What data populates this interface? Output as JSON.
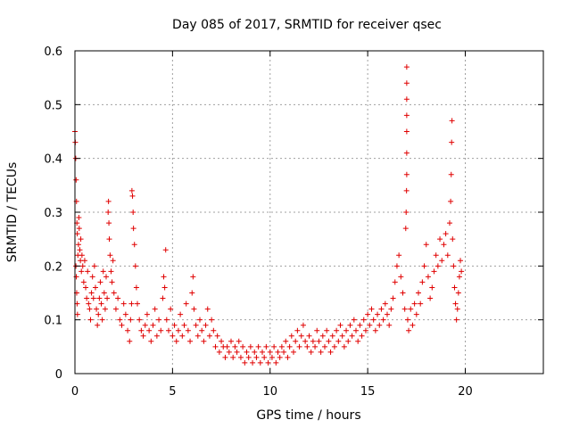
{
  "chart_data": {
    "type": "scatter",
    "title": "Day 085 of 2017, SRMTID for receiver qsec",
    "xlabel": "GPS time / hours",
    "ylabel": "SRMTID / TECUs",
    "xlim": [
      0,
      24
    ],
    "ylim": [
      0,
      0.6
    ],
    "xticks": [
      0,
      5,
      10,
      15,
      20
    ],
    "xtick_labels": [
      "0",
      "5",
      "10",
      "15",
      "20"
    ],
    "yticks": [
      0,
      0.1,
      0.2,
      0.3,
      0.4,
      0.5,
      0.6
    ],
    "ytick_labels": [
      "0",
      "0.1",
      "0.2",
      "0.3",
      "0.4",
      "0.5",
      "0.6"
    ],
    "grid": true,
    "marker": "+",
    "color": "#e00000",
    "series": [
      {
        "name": "SRMTID",
        "points": [
          [
            0.0,
            0.45
          ],
          [
            0.02,
            0.43
          ],
          [
            0.04,
            0.4
          ],
          [
            0.06,
            0.36
          ],
          [
            0.08,
            0.32
          ],
          [
            0.1,
            0.28
          ],
          [
            0.12,
            0.26
          ],
          [
            0.05,
            0.2
          ],
          [
            0.07,
            0.18
          ],
          [
            0.09,
            0.15
          ],
          [
            0.11,
            0.13
          ],
          [
            0.13,
            0.11
          ],
          [
            0.15,
            0.22
          ],
          [
            0.18,
            0.24
          ],
          [
            0.2,
            0.29
          ],
          [
            0.22,
            0.27
          ],
          [
            0.25,
            0.23
          ],
          [
            0.28,
            0.21
          ],
          [
            0.3,
            0.25
          ],
          [
            0.33,
            0.19
          ],
          [
            0.36,
            0.22
          ],
          [
            0.4,
            0.2
          ],
          [
            0.45,
            0.17
          ],
          [
            0.5,
            0.21
          ],
          [
            0.55,
            0.16
          ],
          [
            0.6,
            0.14
          ],
          [
            0.65,
            0.19
          ],
          [
            0.7,
            0.13
          ],
          [
            0.75,
            0.12
          ],
          [
            0.8,
            0.1
          ],
          [
            0.85,
            0.15
          ],
          [
            0.9,
            0.18
          ],
          [
            0.95,
            0.14
          ],
          [
            1.0,
            0.2
          ],
          [
            1.05,
            0.16
          ],
          [
            1.1,
            0.12
          ],
          [
            1.15,
            0.09
          ],
          [
            1.2,
            0.11
          ],
          [
            1.25,
            0.14
          ],
          [
            1.3,
            0.17
          ],
          [
            1.35,
            0.13
          ],
          [
            1.4,
            0.1
          ],
          [
            1.45,
            0.19
          ],
          [
            1.5,
            0.15
          ],
          [
            1.55,
            0.12
          ],
          [
            1.6,
            0.18
          ],
          [
            1.65,
            0.14
          ],
          [
            1.7,
            0.3
          ],
          [
            1.72,
            0.32
          ],
          [
            1.74,
            0.28
          ],
          [
            1.76,
            0.25
          ],
          [
            1.8,
            0.22
          ],
          [
            1.85,
            0.19
          ],
          [
            1.9,
            0.17
          ],
          [
            1.95,
            0.21
          ],
          [
            2.0,
            0.15
          ],
          [
            2.1,
            0.12
          ],
          [
            2.2,
            0.14
          ],
          [
            2.3,
            0.1
          ],
          [
            2.4,
            0.09
          ],
          [
            2.5,
            0.13
          ],
          [
            2.6,
            0.11
          ],
          [
            2.7,
            0.08
          ],
          [
            2.8,
            0.06
          ],
          [
            2.85,
            0.1
          ],
          [
            2.9,
            0.13
          ],
          [
            2.92,
            0.34
          ],
          [
            2.95,
            0.33
          ],
          [
            2.98,
            0.3
          ],
          [
            3.0,
            0.27
          ],
          [
            3.05,
            0.24
          ],
          [
            3.1,
            0.2
          ],
          [
            3.15,
            0.16
          ],
          [
            3.2,
            0.13
          ],
          [
            3.3,
            0.1
          ],
          [
            3.4,
            0.08
          ],
          [
            3.5,
            0.07
          ],
          [
            3.6,
            0.09
          ],
          [
            3.7,
            0.11
          ],
          [
            3.8,
            0.08
          ],
          [
            3.9,
            0.06
          ],
          [
            4.0,
            0.09
          ],
          [
            4.1,
            0.12
          ],
          [
            4.2,
            0.07
          ],
          [
            4.3,
            0.1
          ],
          [
            4.4,
            0.08
          ],
          [
            4.5,
            0.14
          ],
          [
            4.55,
            0.18
          ],
          [
            4.6,
            0.16
          ],
          [
            4.65,
            0.23
          ],
          [
            4.7,
            0.1
          ],
          [
            4.8,
            0.08
          ],
          [
            4.9,
            0.12
          ],
          [
            5.0,
            0.07
          ],
          [
            5.1,
            0.09
          ],
          [
            5.2,
            0.06
          ],
          [
            5.3,
            0.08
          ],
          [
            5.4,
            0.11
          ],
          [
            5.5,
            0.07
          ],
          [
            5.6,
            0.09
          ],
          [
            5.7,
            0.13
          ],
          [
            5.8,
            0.08
          ],
          [
            5.9,
            0.06
          ],
          [
            6.0,
            0.15
          ],
          [
            6.05,
            0.18
          ],
          [
            6.1,
            0.12
          ],
          [
            6.2,
            0.09
          ],
          [
            6.3,
            0.07
          ],
          [
            6.4,
            0.1
          ],
          [
            6.5,
            0.08
          ],
          [
            6.6,
            0.06
          ],
          [
            6.7,
            0.09
          ],
          [
            6.8,
            0.12
          ],
          [
            6.9,
            0.07
          ],
          [
            7.0,
            0.1
          ],
          [
            7.1,
            0.08
          ],
          [
            7.2,
            0.05
          ],
          [
            7.3,
            0.07
          ],
          [
            7.4,
            0.04
          ],
          [
            7.5,
            0.06
          ],
          [
            7.6,
            0.05
          ],
          [
            7.7,
            0.03
          ],
          [
            7.8,
            0.05
          ],
          [
            7.9,
            0.04
          ],
          [
            8.0,
            0.06
          ],
          [
            8.1,
            0.03
          ],
          [
            8.2,
            0.05
          ],
          [
            8.3,
            0.04
          ],
          [
            8.4,
            0.06
          ],
          [
            8.5,
            0.03
          ],
          [
            8.6,
            0.05
          ],
          [
            8.7,
            0.02
          ],
          [
            8.8,
            0.04
          ],
          [
            8.9,
            0.03
          ],
          [
            9.0,
            0.05
          ],
          [
            9.1,
            0.02
          ],
          [
            9.2,
            0.04
          ],
          [
            9.3,
            0.03
          ],
          [
            9.4,
            0.05
          ],
          [
            9.5,
            0.02
          ],
          [
            9.6,
            0.04
          ],
          [
            9.7,
            0.03
          ],
          [
            9.8,
            0.05
          ],
          [
            9.9,
            0.02
          ],
          [
            10.0,
            0.04
          ],
          [
            10.1,
            0.03
          ],
          [
            10.2,
            0.05
          ],
          [
            10.3,
            0.02
          ],
          [
            10.4,
            0.04
          ],
          [
            10.5,
            0.03
          ],
          [
            10.6,
            0.05
          ],
          [
            10.7,
            0.04
          ],
          [
            10.8,
            0.06
          ],
          [
            10.9,
            0.03
          ],
          [
            11.0,
            0.05
          ],
          [
            11.1,
            0.07
          ],
          [
            11.2,
            0.04
          ],
          [
            11.3,
            0.06
          ],
          [
            11.4,
            0.08
          ],
          [
            11.5,
            0.05
          ],
          [
            11.6,
            0.07
          ],
          [
            11.7,
            0.09
          ],
          [
            11.8,
            0.06
          ],
          [
            11.9,
            0.05
          ],
          [
            12.0,
            0.07
          ],
          [
            12.1,
            0.04
          ],
          [
            12.2,
            0.06
          ],
          [
            12.3,
            0.05
          ],
          [
            12.4,
            0.08
          ],
          [
            12.5,
            0.06
          ],
          [
            12.6,
            0.04
          ],
          [
            12.7,
            0.07
          ],
          [
            12.8,
            0.05
          ],
          [
            12.9,
            0.08
          ],
          [
            13.0,
            0.06
          ],
          [
            13.1,
            0.04
          ],
          [
            13.2,
            0.07
          ],
          [
            13.3,
            0.05
          ],
          [
            13.4,
            0.08
          ],
          [
            13.5,
            0.06
          ],
          [
            13.6,
            0.09
          ],
          [
            13.7,
            0.07
          ],
          [
            13.8,
            0.05
          ],
          [
            13.9,
            0.08
          ],
          [
            14.0,
            0.06
          ],
          [
            14.1,
            0.09
          ],
          [
            14.2,
            0.07
          ],
          [
            14.3,
            0.1
          ],
          [
            14.4,
            0.08
          ],
          [
            14.5,
            0.06
          ],
          [
            14.6,
            0.09
          ],
          [
            14.7,
            0.07
          ],
          [
            14.8,
            0.1
          ],
          [
            14.9,
            0.08
          ],
          [
            15.0,
            0.11
          ],
          [
            15.1,
            0.09
          ],
          [
            15.2,
            0.12
          ],
          [
            15.3,
            0.1
          ],
          [
            15.4,
            0.08
          ],
          [
            15.5,
            0.11
          ],
          [
            15.6,
            0.09
          ],
          [
            15.7,
            0.12
          ],
          [
            15.8,
            0.1
          ],
          [
            15.9,
            0.13
          ],
          [
            16.0,
            0.11
          ],
          [
            16.1,
            0.09
          ],
          [
            16.2,
            0.12
          ],
          [
            16.3,
            0.14
          ],
          [
            16.4,
            0.17
          ],
          [
            16.5,
            0.2
          ],
          [
            16.6,
            0.22
          ],
          [
            16.7,
            0.18
          ],
          [
            16.8,
            0.15
          ],
          [
            16.9,
            0.12
          ],
          [
            16.95,
            0.27
          ],
          [
            16.97,
            0.3
          ],
          [
            16.99,
            0.34
          ],
          [
            17.0,
            0.57
          ],
          [
            17.0,
            0.54
          ],
          [
            17.0,
            0.51
          ],
          [
            17.0,
            0.48
          ],
          [
            17.0,
            0.45
          ],
          [
            17.0,
            0.41
          ],
          [
            17.0,
            0.37
          ],
          [
            17.05,
            0.1
          ],
          [
            17.1,
            0.08
          ],
          [
            17.2,
            0.12
          ],
          [
            17.3,
            0.09
          ],
          [
            17.4,
            0.13
          ],
          [
            17.5,
            0.11
          ],
          [
            17.6,
            0.15
          ],
          [
            17.7,
            0.13
          ],
          [
            17.8,
            0.17
          ],
          [
            17.9,
            0.2
          ],
          [
            18.0,
            0.24
          ],
          [
            18.1,
            0.18
          ],
          [
            18.2,
            0.14
          ],
          [
            18.3,
            0.16
          ],
          [
            18.4,
            0.19
          ],
          [
            18.5,
            0.22
          ],
          [
            18.6,
            0.2
          ],
          [
            18.7,
            0.25
          ],
          [
            18.8,
            0.21
          ],
          [
            18.9,
            0.24
          ],
          [
            19.0,
            0.26
          ],
          [
            19.1,
            0.22
          ],
          [
            19.2,
            0.28
          ],
          [
            19.25,
            0.32
          ],
          [
            19.28,
            0.37
          ],
          [
            19.3,
            0.43
          ],
          [
            19.32,
            0.47
          ],
          [
            19.35,
            0.25
          ],
          [
            19.4,
            0.2
          ],
          [
            19.45,
            0.16
          ],
          [
            19.5,
            0.13
          ],
          [
            19.55,
            0.1
          ],
          [
            19.6,
            0.12
          ],
          [
            19.65,
            0.15
          ],
          [
            19.7,
            0.18
          ],
          [
            19.75,
            0.21
          ],
          [
            19.8,
            0.19
          ]
        ]
      }
    ]
  }
}
